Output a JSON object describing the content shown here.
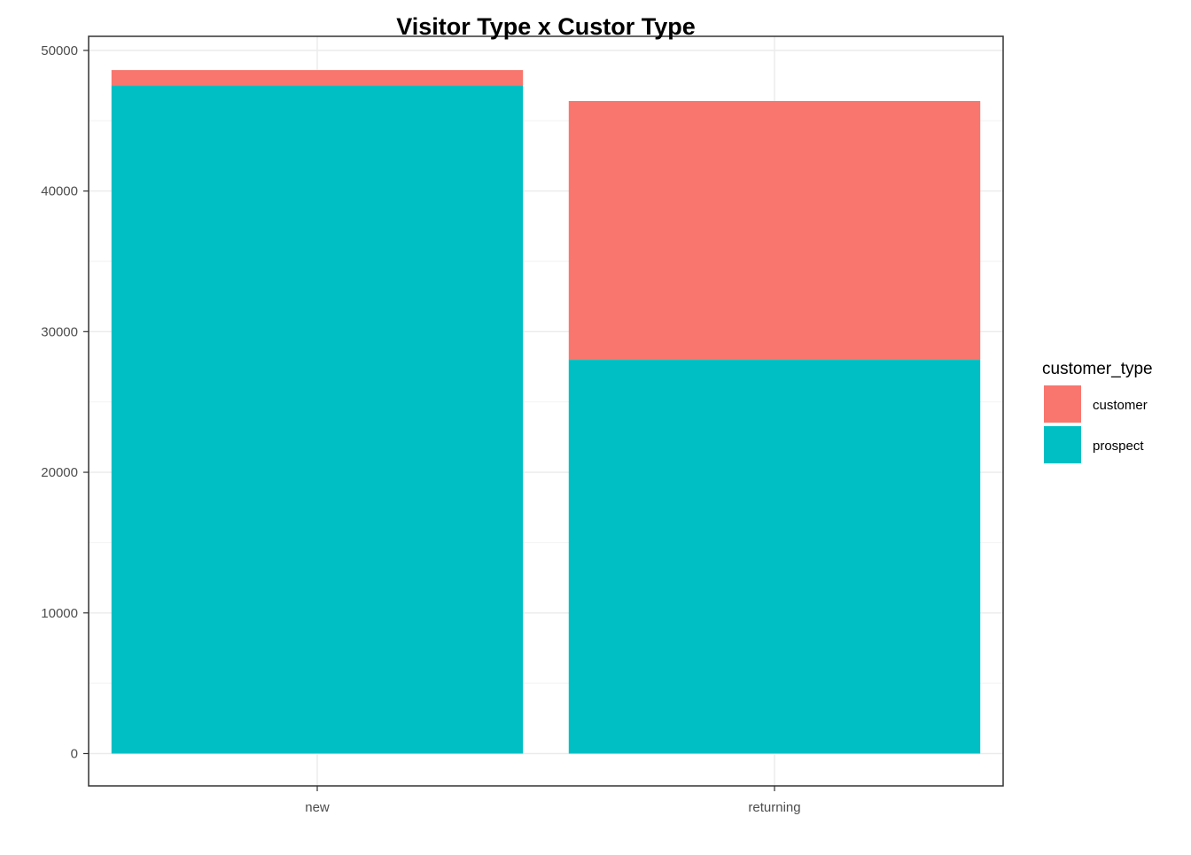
{
  "chart_data": {
    "type": "bar",
    "stacked": true,
    "title": "Visitor Type x Custor Type",
    "xlabel": "",
    "ylabel": "",
    "categories": [
      "new",
      "returning"
    ],
    "series": [
      {
        "name": "customer",
        "color": "#F8766D",
        "values": [
          1100,
          18400
        ]
      },
      {
        "name": "prospect",
        "color": "#00BFC4",
        "values": [
          47500,
          28000
        ]
      }
    ],
    "ylim": [
      -2300,
      51000
    ],
    "yticks": [
      0,
      10000,
      20000,
      30000,
      40000,
      50000
    ],
    "ytick_labels": [
      "0",
      "10000",
      "20000",
      "30000",
      "40000",
      "50000"
    ],
    "grid": true,
    "legend": {
      "title": "customer_type",
      "position": "right"
    }
  }
}
